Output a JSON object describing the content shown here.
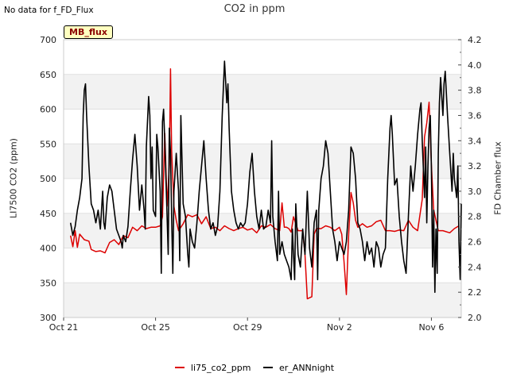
{
  "note": "No data for f_FD_Flux",
  "tag": "MB_flux",
  "chart_data": {
    "type": "line",
    "title": "CO2 in ppm",
    "ylabel": "LI7500 CO2 (ppm)",
    "y2label": "FD Chamber flux",
    "xlabel": "",
    "xlim": [
      0,
      17.3
    ],
    "ylim": [
      300,
      700
    ],
    "y2lim": [
      2.0,
      4.2
    ],
    "x_ticks": [
      {
        "x": 0,
        "label": "Oct 21"
      },
      {
        "x": 4,
        "label": "Oct 25"
      },
      {
        "x": 8,
        "label": "Oct 29"
      },
      {
        "x": 12,
        "label": "Nov 2"
      },
      {
        "x": 16,
        "label": "Nov 6"
      }
    ],
    "y_ticks": [
      300,
      350,
      400,
      450,
      500,
      550,
      600,
      650,
      700
    ],
    "y2_ticks": [
      "2.0",
      "2.2",
      "2.4",
      "2.6",
      "2.8",
      "3.0",
      "3.2",
      "3.4",
      "3.6",
      "3.8",
      "4.0",
      "4.2"
    ],
    "series": [
      {
        "name": "li75_co2_ppm",
        "axis": "left",
        "color": "#dd0000",
        "points": [
          [
            0.3,
            418
          ],
          [
            0.4,
            402
          ],
          [
            0.5,
            425
          ],
          [
            0.6,
            401
          ],
          [
            0.7,
            420
          ],
          [
            0.9,
            412
          ],
          [
            1.1,
            410
          ],
          [
            1.2,
            398
          ],
          [
            1.4,
            395
          ],
          [
            1.6,
            396
          ],
          [
            1.8,
            393
          ],
          [
            2.0,
            408
          ],
          [
            2.2,
            412
          ],
          [
            2.4,
            405
          ],
          [
            2.6,
            418
          ],
          [
            2.8,
            415
          ],
          [
            3.0,
            430
          ],
          [
            3.2,
            425
          ],
          [
            3.4,
            432
          ],
          [
            3.6,
            428
          ],
          [
            3.8,
            430
          ],
          [
            4.0,
            430
          ],
          [
            4.2,
            432
          ],
          [
            4.3,
            445
          ],
          [
            4.4,
            565
          ],
          [
            4.5,
            460
          ],
          [
            4.6,
            520
          ],
          [
            4.65,
            658
          ],
          [
            4.7,
            540
          ],
          [
            4.8,
            460
          ],
          [
            4.9,
            440
          ],
          [
            5.0,
            425
          ],
          [
            5.2,
            435
          ],
          [
            5.4,
            448
          ],
          [
            5.6,
            445
          ],
          [
            5.8,
            448
          ],
          [
            6.0,
            435
          ],
          [
            6.2,
            445
          ],
          [
            6.4,
            428
          ],
          [
            6.6,
            430
          ],
          [
            6.8,
            425
          ],
          [
            7.0,
            432
          ],
          [
            7.2,
            428
          ],
          [
            7.4,
            425
          ],
          [
            7.6,
            428
          ],
          [
            7.8,
            430
          ],
          [
            8.0,
            426
          ],
          [
            8.2,
            428
          ],
          [
            8.4,
            422
          ],
          [
            8.6,
            432
          ],
          [
            8.8,
            430
          ],
          [
            9.0,
            434
          ],
          [
            9.2,
            428
          ],
          [
            9.4,
            425
          ],
          [
            9.5,
            465
          ],
          [
            9.6,
            430
          ],
          [
            9.7,
            430
          ],
          [
            9.8,
            428
          ],
          [
            9.9,
            423
          ],
          [
            10.0,
            445
          ],
          [
            10.2,
            425
          ],
          [
            10.4,
            425
          ],
          [
            10.5,
            390
          ],
          [
            10.6,
            327
          ],
          [
            10.8,
            330
          ],
          [
            10.9,
            420
          ],
          [
            11.0,
            428
          ],
          [
            11.2,
            428
          ],
          [
            11.4,
            432
          ],
          [
            11.6,
            430
          ],
          [
            11.8,
            425
          ],
          [
            12.0,
            430
          ],
          [
            12.1,
            420
          ],
          [
            12.2,
            380
          ],
          [
            12.3,
            333
          ],
          [
            12.4,
            420
          ],
          [
            12.5,
            480
          ],
          [
            12.6,
            465
          ],
          [
            12.7,
            440
          ],
          [
            12.8,
            430
          ],
          [
            13.0,
            435
          ],
          [
            13.2,
            430
          ],
          [
            13.4,
            432
          ],
          [
            13.6,
            438
          ],
          [
            13.8,
            440
          ],
          [
            14.0,
            425
          ],
          [
            14.2,
            425
          ],
          [
            14.4,
            424
          ],
          [
            14.6,
            426
          ],
          [
            14.8,
            425
          ],
          [
            15.0,
            440
          ],
          [
            15.2,
            430
          ],
          [
            15.4,
            425
          ],
          [
            15.6,
            470
          ],
          [
            15.7,
            560
          ],
          [
            15.8,
            580
          ],
          [
            15.9,
            610
          ],
          [
            16.0,
            520
          ],
          [
            16.1,
            455
          ],
          [
            16.3,
            425
          ],
          [
            16.5,
            425
          ],
          [
            16.8,
            422
          ],
          [
            17.0,
            428
          ],
          [
            17.2,
            432
          ]
        ]
      },
      {
        "name": "er_ANNnight",
        "axis": "right",
        "color": "#000000",
        "points": [
          [
            0.3,
            2.75
          ],
          [
            0.4,
            2.65
          ],
          [
            0.5,
            2.72
          ],
          [
            0.6,
            2.85
          ],
          [
            0.7,
            2.95
          ],
          [
            0.8,
            3.1
          ],
          [
            0.85,
            3.6
          ],
          [
            0.9,
            3.8
          ],
          [
            0.95,
            3.85
          ],
          [
            1.0,
            3.6
          ],
          [
            1.1,
            3.2
          ],
          [
            1.2,
            2.9
          ],
          [
            1.3,
            2.85
          ],
          [
            1.4,
            2.75
          ],
          [
            1.5,
            2.85
          ],
          [
            1.6,
            2.7
          ],
          [
            1.7,
            3.0
          ],
          [
            1.75,
            2.75
          ],
          [
            1.8,
            2.7
          ],
          [
            1.9,
            2.95
          ],
          [
            2.0,
            3.05
          ],
          [
            2.1,
            3.0
          ],
          [
            2.2,
            2.85
          ],
          [
            2.3,
            2.7
          ],
          [
            2.4,
            2.65
          ],
          [
            2.5,
            2.6
          ],
          [
            2.55,
            2.55
          ],
          [
            2.6,
            2.65
          ],
          [
            2.7,
            2.6
          ],
          [
            2.8,
            2.72
          ],
          [
            2.9,
            3.0
          ],
          [
            3.0,
            3.25
          ],
          [
            3.1,
            3.45
          ],
          [
            3.2,
            3.2
          ],
          [
            3.3,
            2.85
          ],
          [
            3.4,
            3.05
          ],
          [
            3.5,
            2.85
          ],
          [
            3.55,
            2.7
          ],
          [
            3.6,
            3.35
          ],
          [
            3.7,
            3.75
          ],
          [
            3.75,
            3.6
          ],
          [
            3.8,
            3.1
          ],
          [
            3.85,
            3.35
          ],
          [
            3.9,
            2.85
          ],
          [
            4.0,
            2.8
          ],
          [
            4.05,
            3.45
          ],
          [
            4.1,
            3.35
          ],
          [
            4.2,
            3.0
          ],
          [
            4.25,
            2.35
          ],
          [
            4.3,
            3.55
          ],
          [
            4.35,
            3.65
          ],
          [
            4.4,
            3.4
          ],
          [
            4.5,
            2.8
          ],
          [
            4.55,
            2.5
          ],
          [
            4.6,
            3.5
          ],
          [
            4.65,
            3.3
          ],
          [
            4.7,
            2.8
          ],
          [
            4.75,
            2.35
          ],
          [
            4.8,
            3.0
          ],
          [
            4.9,
            3.3
          ],
          [
            5.0,
            3.0
          ],
          [
            5.05,
            2.45
          ],
          [
            5.1,
            3.6
          ],
          [
            5.2,
            2.9
          ],
          [
            5.3,
            2.8
          ],
          [
            5.4,
            2.5
          ],
          [
            5.45,
            2.4
          ],
          [
            5.5,
            2.7
          ],
          [
            5.6,
            2.6
          ],
          [
            5.7,
            2.55
          ],
          [
            5.8,
            2.75
          ],
          [
            5.9,
            3.0
          ],
          [
            6.0,
            3.2
          ],
          [
            6.1,
            3.4
          ],
          [
            6.2,
            3.1
          ],
          [
            6.3,
            2.85
          ],
          [
            6.4,
            2.7
          ],
          [
            6.5,
            2.75
          ],
          [
            6.6,
            2.65
          ],
          [
            6.7,
            2.72
          ],
          [
            6.8,
            3.0
          ],
          [
            6.9,
            3.6
          ],
          [
            7.0,
            4.03
          ],
          [
            7.1,
            3.7
          ],
          [
            7.15,
            3.85
          ],
          [
            7.2,
            3.5
          ],
          [
            7.3,
            3.0
          ],
          [
            7.4,
            2.85
          ],
          [
            7.5,
            2.75
          ],
          [
            7.6,
            2.7
          ],
          [
            7.7,
            2.75
          ],
          [
            7.8,
            2.72
          ],
          [
            7.9,
            2.75
          ],
          [
            8.0,
            2.9
          ],
          [
            8.1,
            3.15
          ],
          [
            8.2,
            3.3
          ],
          [
            8.3,
            3.0
          ],
          [
            8.4,
            2.8
          ],
          [
            8.5,
            2.7
          ],
          [
            8.6,
            2.85
          ],
          [
            8.7,
            2.7
          ],
          [
            8.8,
            2.72
          ],
          [
            8.9,
            2.85
          ],
          [
            9.0,
            2.75
          ],
          [
            9.05,
            3.4
          ],
          [
            9.1,
            2.8
          ],
          [
            9.2,
            2.6
          ],
          [
            9.3,
            2.45
          ],
          [
            9.35,
            3.0
          ],
          [
            9.4,
            2.5
          ],
          [
            9.5,
            2.6
          ],
          [
            9.6,
            2.5
          ],
          [
            9.7,
            2.45
          ],
          [
            9.8,
            2.4
          ],
          [
            9.9,
            2.3
          ],
          [
            9.95,
            2.7
          ],
          [
            10.0,
            2.5
          ],
          [
            10.05,
            2.3
          ],
          [
            10.1,
            2.9
          ],
          [
            10.2,
            2.5
          ],
          [
            10.3,
            2.4
          ],
          [
            10.4,
            2.7
          ],
          [
            10.5,
            2.5
          ],
          [
            10.6,
            3.0
          ],
          [
            10.7,
            2.55
          ],
          [
            10.8,
            2.4
          ],
          [
            10.9,
            2.75
          ],
          [
            11.0,
            2.85
          ],
          [
            11.05,
            2.3
          ],
          [
            11.1,
            2.85
          ],
          [
            11.2,
            3.1
          ],
          [
            11.3,
            3.2
          ],
          [
            11.4,
            3.4
          ],
          [
            11.5,
            3.3
          ],
          [
            11.6,
            3.0
          ],
          [
            11.7,
            2.7
          ],
          [
            11.8,
            2.6
          ],
          [
            11.9,
            2.45
          ],
          [
            12.0,
            2.6
          ],
          [
            12.1,
            2.55
          ],
          [
            12.2,
            2.5
          ],
          [
            12.3,
            2.6
          ],
          [
            12.4,
            2.85
          ],
          [
            12.5,
            3.35
          ],
          [
            12.6,
            3.3
          ],
          [
            12.7,
            3.1
          ],
          [
            12.8,
            2.75
          ],
          [
            12.9,
            2.7
          ],
          [
            13.0,
            2.6
          ],
          [
            13.1,
            2.45
          ],
          [
            13.2,
            2.6
          ],
          [
            13.3,
            2.5
          ],
          [
            13.4,
            2.55
          ],
          [
            13.5,
            2.4
          ],
          [
            13.6,
            2.6
          ],
          [
            13.7,
            2.55
          ],
          [
            13.8,
            2.4
          ],
          [
            13.9,
            2.5
          ],
          [
            14.0,
            2.55
          ],
          [
            14.1,
            3.1
          ],
          [
            14.2,
            3.5
          ],
          [
            14.25,
            3.6
          ],
          [
            14.3,
            3.45
          ],
          [
            14.4,
            3.05
          ],
          [
            14.5,
            3.1
          ],
          [
            14.6,
            2.8
          ],
          [
            14.7,
            2.6
          ],
          [
            14.8,
            2.45
          ],
          [
            14.9,
            2.35
          ],
          [
            15.0,
            2.8
          ],
          [
            15.1,
            3.2
          ],
          [
            15.2,
            3.0
          ],
          [
            15.3,
            3.2
          ],
          [
            15.4,
            3.45
          ],
          [
            15.5,
            3.65
          ],
          [
            15.55,
            3.7
          ],
          [
            15.6,
            3.4
          ],
          [
            15.7,
            2.95
          ],
          [
            15.75,
            3.35
          ],
          [
            15.8,
            2.75
          ],
          [
            15.85,
            3.2
          ],
          [
            15.9,
            3.5
          ],
          [
            15.95,
            3.6
          ],
          [
            16.0,
            3.2
          ],
          [
            16.05,
            2.4
          ],
          [
            16.1,
            2.85
          ],
          [
            16.15,
            2.2
          ],
          [
            16.2,
            2.7
          ],
          [
            16.25,
            2.35
          ],
          [
            16.3,
            3.3
          ],
          [
            16.35,
            3.7
          ],
          [
            16.4,
            3.9
          ],
          [
            16.5,
            3.6
          ],
          [
            16.55,
            3.85
          ],
          [
            16.6,
            3.95
          ],
          [
            16.7,
            3.6
          ],
          [
            16.8,
            3.3
          ],
          [
            16.9,
            3.0
          ],
          [
            16.95,
            3.3
          ],
          [
            17.0,
            3.1
          ],
          [
            17.1,
            2.95
          ],
          [
            17.15,
            3.2
          ],
          [
            17.2,
            2.6
          ],
          [
            17.25,
            2.3
          ],
          [
            17.3,
            2.9
          ]
        ]
      }
    ],
    "legend": [
      "li75_co2_ppm",
      "er_ANNnight"
    ],
    "legend_position": "bottom",
    "grid": true
  }
}
